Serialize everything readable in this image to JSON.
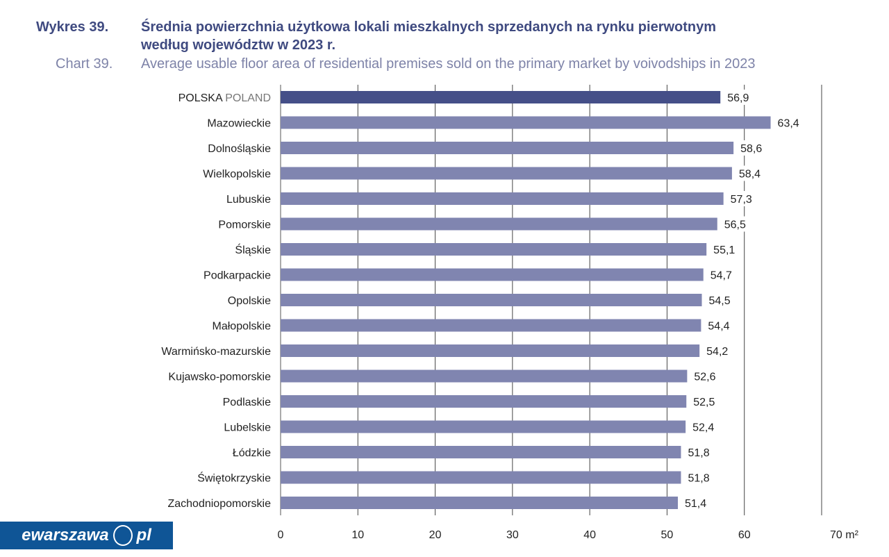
{
  "header": {
    "label_pl": "Wykres 39.",
    "title_pl_line1": "Średnia powierzchnia użytkowa lokali mieszkalnych sprzedanych na rynku pierwotnym",
    "title_pl_line2": "według województw w 2023 r.",
    "label_en": "Chart 39.",
    "title_en": "Average usable floor area of residential premises sold on the primary market by voivodships in 2023"
  },
  "logo": {
    "text_left": "ewarszawa",
    "text_right": "pl"
  },
  "chart_data": {
    "type": "bar",
    "orientation": "horizontal",
    "title": "Average usable floor area of residential premises sold on the primary market by voivodships in 2023",
    "categories": [
      "POLSKA",
      "Mazowieckie",
      "Dolnośląskie",
      "Wielkopolskie",
      "Lubuskie",
      "Pomorskie",
      "Śląskie",
      "Podkarpackie",
      "Opolskie",
      "Małopolskie",
      "Warmińsko-mazurskie",
      "Kujawsko-pomorskie",
      "Podlaskie",
      "Lubelskie",
      "Łódzkie",
      "Świętokrzyskie",
      "Zachodniopomorskie"
    ],
    "category_suffix_first": "POLAND",
    "values": [
      56.9,
      63.4,
      58.6,
      58.4,
      57.3,
      56.5,
      55.1,
      54.7,
      54.5,
      54.4,
      54.2,
      52.6,
      52.5,
      52.4,
      51.8,
      51.8,
      51.4
    ],
    "value_labels": [
      "56,9",
      "63,4",
      "58,6",
      "58,4",
      "57,3",
      "56,5",
      "55,1",
      "54,7",
      "54,5",
      "54,4",
      "54,2",
      "52,6",
      "52,5",
      "52,4",
      "51,8",
      "51,8",
      "51,4"
    ],
    "xlim": [
      0,
      70
    ],
    "xticks": [
      "0",
      "10",
      "20",
      "30",
      "40",
      "50",
      "60",
      "70 m²"
    ],
    "xlabel": "m²",
    "grid": true,
    "colors": {
      "highlight": "#454f88",
      "bar": "#8085b0",
      "title": "#3f4a80",
      "subtitle": "#7e83a8",
      "logo": "#0f5596"
    }
  }
}
